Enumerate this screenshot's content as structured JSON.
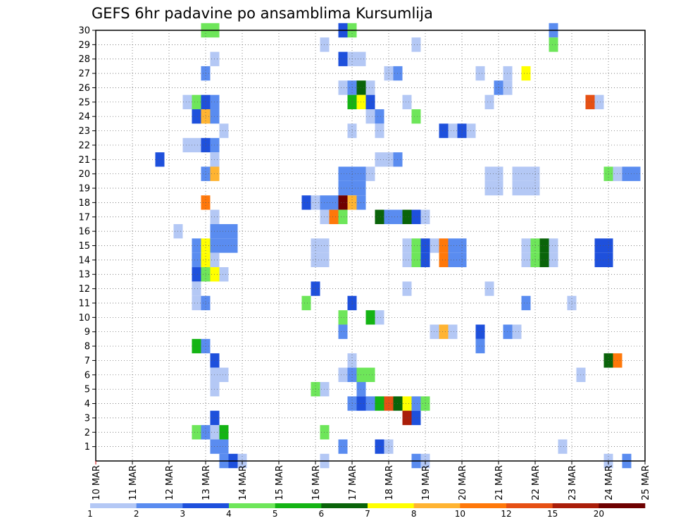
{
  "chart_data": {
    "type": "heatmap",
    "title": "GEFS 6hr padavine po ansamblima Kursumlija",
    "x_ticks": [
      "10 MAR",
      "11 MAR",
      "12 MAR",
      "13 MAR",
      "14 MAR",
      "15 MAR",
      "16 MAR",
      "17 MAR",
      "18 MAR",
      "19 MAR",
      "20 MAR",
      "21 MAR",
      "22 MAR",
      "23 MAR",
      "24 MAR",
      "25 MAR"
    ],
    "y_ticks": [
      "1",
      "2",
      "3",
      "4",
      "5",
      "6",
      "7",
      "8",
      "9",
      "10",
      "11",
      "12",
      "13",
      "14",
      "15",
      "16",
      "17",
      "18",
      "19",
      "20",
      "21",
      "22",
      "23",
      "24",
      "25",
      "26",
      "27",
      "28",
      "29",
      "30"
    ],
    "xlim": [
      "10 MAR 00",
      "25 MAR 00"
    ],
    "ylim": [
      0,
      30
    ],
    "grid": true,
    "legend": {
      "position": "bottom",
      "labels": [
        "1",
        "2",
        "3",
        "4",
        "5",
        "6",
        "7",
        "8",
        "10",
        "12",
        "15",
        "20"
      ],
      "colors": [
        "#b4c8f5",
        "#5a8cf0",
        "#1e50dc",
        "#6ee65a",
        "#14b414",
        "#0a640a",
        "#ffff00",
        "#ffb432",
        "#ff780a",
        "#e65014",
        "#aa1e0a",
        "#6e0000"
      ]
    },
    "cells": [
      {
        "date": "13 MAR 00",
        "member": 30,
        "value": 4
      },
      {
        "date": "13 MAR 06",
        "member": 30,
        "value": 4
      },
      {
        "date": "16 MAR 18",
        "member": 30,
        "value": 3
      },
      {
        "date": "17 MAR 00",
        "member": 30,
        "value": 4
      },
      {
        "date": "22 MAR 12",
        "member": 30,
        "value": 2
      },
      {
        "date": "16 MAR 06",
        "member": 29,
        "value": 1
      },
      {
        "date": "18 MAR 18",
        "member": 29,
        "value": 1
      },
      {
        "date": "22 MAR 12",
        "member": 29,
        "value": 4
      },
      {
        "date": "13 MAR 06",
        "member": 28,
        "value": 1
      },
      {
        "date": "16 MAR 18",
        "member": 28,
        "value": 3
      },
      {
        "date": "17 MAR 00",
        "member": 28,
        "value": 1
      },
      {
        "date": "17 MAR 06",
        "member": 28,
        "value": 1
      },
      {
        "date": "13 MAR 00",
        "member": 27,
        "value": 2
      },
      {
        "date": "18 MAR 00",
        "member": 27,
        "value": 1
      },
      {
        "date": "18 MAR 06",
        "member": 27,
        "value": 2
      },
      {
        "date": "20 MAR 12",
        "member": 27,
        "value": 1
      },
      {
        "date": "21 MAR 06",
        "member": 27,
        "value": 1
      },
      {
        "date": "21 MAR 18",
        "member": 27,
        "value": 7
      },
      {
        "date": "16 MAR 18",
        "member": 26,
        "value": 1
      },
      {
        "date": "17 MAR 00",
        "member": 26,
        "value": 2
      },
      {
        "date": "17 MAR 06",
        "member": 26,
        "value": 6
      },
      {
        "date": "17 MAR 12",
        "member": 26,
        "value": 1
      },
      {
        "date": "21 MAR 00",
        "member": 26,
        "value": 2
      },
      {
        "date": "21 MAR 06",
        "member": 26,
        "value": 1
      },
      {
        "date": "12 MAR 18",
        "member": 25,
        "value": 4
      },
      {
        "date": "13 MAR 00",
        "member": 25,
        "value": 3
      },
      {
        "date": "13 MAR 06",
        "member": 25,
        "value": 2
      },
      {
        "date": "12 MAR 12",
        "member": 25,
        "value": 1
      },
      {
        "date": "17 MAR 00",
        "member": 25,
        "value": 5
      },
      {
        "date": "17 MAR 06",
        "member": 25,
        "value": 7
      },
      {
        "date": "17 MAR 12",
        "member": 25,
        "value": 3
      },
      {
        "date": "18 MAR 12",
        "member": 25,
        "value": 1
      },
      {
        "date": "20 MAR 18",
        "member": 25,
        "value": 1
      },
      {
        "date": "23 MAR 12",
        "member": 25,
        "value": 12
      },
      {
        "date": "23 MAR 18",
        "member": 25,
        "value": 1
      },
      {
        "date": "12 MAR 18",
        "member": 24,
        "value": 3
      },
      {
        "date": "13 MAR 00",
        "member": 24,
        "value": 8
      },
      {
        "date": "13 MAR 06",
        "member": 24,
        "value": 2
      },
      {
        "date": "17 MAR 12",
        "member": 24,
        "value": 1
      },
      {
        "date": "17 MAR 18",
        "member": 24,
        "value": 2
      },
      {
        "date": "18 MAR 18",
        "member": 24,
        "value": 4
      },
      {
        "date": "13 MAR 12",
        "member": 23,
        "value": 1
      },
      {
        "date": "17 MAR 00",
        "member": 23,
        "value": 1
      },
      {
        "date": "17 MAR 18",
        "member": 23,
        "value": 1
      },
      {
        "date": "19 MAR 12",
        "member": 23,
        "value": 3
      },
      {
        "date": "19 MAR 18",
        "member": 23,
        "value": 1
      },
      {
        "date": "20 MAR 00",
        "member": 23,
        "value": 3
      },
      {
        "date": "20 MAR 06",
        "member": 23,
        "value": 1
      },
      {
        "date": "12 MAR 12",
        "member": 22,
        "value": 1
      },
      {
        "date": "12 MAR 18",
        "member": 22,
        "value": 1
      },
      {
        "date": "13 MAR 00",
        "member": 22,
        "value": 3
      },
      {
        "date": "13 MAR 06",
        "member": 22,
        "value": 2
      },
      {
        "date": "11 MAR 18",
        "member": 21,
        "value": 3
      },
      {
        "date": "13 MAR 06",
        "member": 21,
        "value": 1
      },
      {
        "date": "17 MAR 18",
        "member": 21,
        "value": 1
      },
      {
        "date": "18 MAR 00",
        "member": 21,
        "value": 1
      },
      {
        "date": "18 MAR 06",
        "member": 21,
        "value": 2
      },
      {
        "date": "13 MAR 00",
        "member": 20,
        "value": 2
      },
      {
        "date": "13 MAR 06",
        "member": 20,
        "value": 8
      },
      {
        "date": "16 MAR 18",
        "member": 20,
        "value": 2
      },
      {
        "date": "17 MAR 00",
        "member": 20,
        "value": 2
      },
      {
        "date": "17 MAR 06",
        "member": 20,
        "value": 2
      },
      {
        "date": "17 MAR 12",
        "member": 20,
        "value": 1
      },
      {
        "date": "20 MAR 18",
        "member": 20,
        "value": 1
      },
      {
        "date": "21 MAR 00",
        "member": 20,
        "value": 1
      },
      {
        "date": "21 MAR 12",
        "member": 20,
        "value": 1
      },
      {
        "date": "21 MAR 18",
        "member": 20,
        "value": 1
      },
      {
        "date": "22 MAR 00",
        "member": 20,
        "value": 1
      },
      {
        "date": "24 MAR 00",
        "member": 20,
        "value": 4
      },
      {
        "date": "24 MAR 06",
        "member": 20,
        "value": 1
      },
      {
        "date": "24 MAR 12",
        "member": 20,
        "value": 2
      },
      {
        "date": "24 MAR 18",
        "member": 20,
        "value": 2
      },
      {
        "date": "16 MAR 18",
        "member": 19,
        "value": 2
      },
      {
        "date": "17 MAR 00",
        "member": 19,
        "value": 2
      },
      {
        "date": "17 MAR 06",
        "member": 19,
        "value": 2
      },
      {
        "date": "20 MAR 18",
        "member": 19,
        "value": 1
      },
      {
        "date": "21 MAR 00",
        "member": 19,
        "value": 1
      },
      {
        "date": "21 MAR 12",
        "member": 19,
        "value": 1
      },
      {
        "date": "21 MAR 18",
        "member": 19,
        "value": 1
      },
      {
        "date": "22 MAR 00",
        "member": 19,
        "value": 1
      },
      {
        "date": "13 MAR 00",
        "member": 18,
        "value": 10
      },
      {
        "date": "15 MAR 18",
        "member": 18,
        "value": 3
      },
      {
        "date": "16 MAR 00",
        "member": 18,
        "value": 1
      },
      {
        "date": "16 MAR 06",
        "member": 18,
        "value": 2
      },
      {
        "date": "16 MAR 12",
        "member": 18,
        "value": 2
      },
      {
        "date": "16 MAR 18",
        "member": 18,
        "value": 20
      },
      {
        "date": "17 MAR 00",
        "member": 18,
        "value": 8
      },
      {
        "date": "17 MAR 06",
        "member": 18,
        "value": 2
      },
      {
        "date": "13 MAR 06",
        "member": 17,
        "value": 1
      },
      {
        "date": "16 MAR 06",
        "member": 17,
        "value": 1
      },
      {
        "date": "16 MAR 12",
        "member": 17,
        "value": 10
      },
      {
        "date": "16 MAR 18",
        "member": 17,
        "value": 4
      },
      {
        "date": "17 MAR 18",
        "member": 17,
        "value": 6
      },
      {
        "date": "18 MAR 00",
        "member": 17,
        "value": 2
      },
      {
        "date": "18 MAR 06",
        "member": 17,
        "value": 2
      },
      {
        "date": "18 MAR 12",
        "member": 17,
        "value": 6
      },
      {
        "date": "18 MAR 18",
        "member": 17,
        "value": 3
      },
      {
        "date": "19 MAR 00",
        "member": 17,
        "value": 1
      },
      {
        "date": "12 MAR 06",
        "member": 16,
        "value": 1
      },
      {
        "date": "13 MAR 06",
        "member": 16,
        "value": 2
      },
      {
        "date": "13 MAR 12",
        "member": 16,
        "value": 2
      },
      {
        "date": "13 MAR 18",
        "member": 16,
        "value": 2
      },
      {
        "date": "13 MAR 06",
        "member": 15,
        "value": 2
      },
      {
        "date": "13 MAR 12",
        "member": 15,
        "value": 2
      },
      {
        "date": "13 MAR 18",
        "member": 15,
        "value": 2
      },
      {
        "date": "12 MAR 18",
        "member": 15,
        "value": 2
      },
      {
        "date": "13 MAR 00",
        "member": 15,
        "value": 7
      },
      {
        "date": "16 MAR 00",
        "member": 15,
        "value": 1
      },
      {
        "date": "16 MAR 06",
        "member": 15,
        "value": 1
      },
      {
        "date": "18 MAR 12",
        "member": 15,
        "value": 1
      },
      {
        "date": "18 MAR 18",
        "member": 15,
        "value": 4
      },
      {
        "date": "19 MAR 00",
        "member": 15,
        "value": 3
      },
      {
        "date": "19 MAR 06",
        "member": 15,
        "value": 1
      },
      {
        "date": "19 MAR 12",
        "member": 15,
        "value": 10
      },
      {
        "date": "19 MAR 18",
        "member": 15,
        "value": 2
      },
      {
        "date": "20 MAR 00",
        "member": 15,
        "value": 2
      },
      {
        "date": "21 MAR 18",
        "member": 15,
        "value": 1
      },
      {
        "date": "22 MAR 00",
        "member": 15,
        "value": 4
      },
      {
        "date": "22 MAR 06",
        "member": 15,
        "value": 6
      },
      {
        "date": "22 MAR 12",
        "member": 15,
        "value": 1
      },
      {
        "date": "23 MAR 18",
        "member": 15,
        "value": 3
      },
      {
        "date": "24 MAR 00",
        "member": 15,
        "value": 3
      },
      {
        "date": "12 MAR 18",
        "member": 14,
        "value": 2
      },
      {
        "date": "13 MAR 00",
        "member": 14,
        "value": 7
      },
      {
        "date": "13 MAR 06",
        "member": 14,
        "value": 1
      },
      {
        "date": "16 MAR 00",
        "member": 14,
        "value": 1
      },
      {
        "date": "16 MAR 06",
        "member": 14,
        "value": 1
      },
      {
        "date": "18 MAR 12",
        "member": 14,
        "value": 1
      },
      {
        "date": "18 MAR 18",
        "member": 14,
        "value": 4
      },
      {
        "date": "19 MAR 00",
        "member": 14,
        "value": 3
      },
      {
        "date": "19 MAR 12",
        "member": 14,
        "value": 10
      },
      {
        "date": "19 MAR 18",
        "member": 14,
        "value": 2
      },
      {
        "date": "20 MAR 00",
        "member": 14,
        "value": 2
      },
      {
        "date": "21 MAR 18",
        "member": 14,
        "value": 1
      },
      {
        "date": "22 MAR 00",
        "member": 14,
        "value": 4
      },
      {
        "date": "22 MAR 06",
        "member": 14,
        "value": 6
      },
      {
        "date": "22 MAR 12",
        "member": 14,
        "value": 1
      },
      {
        "date": "23 MAR 18",
        "member": 14,
        "value": 3
      },
      {
        "date": "24 MAR 00",
        "member": 14,
        "value": 3
      },
      {
        "date": "12 MAR 18",
        "member": 13,
        "value": 3
      },
      {
        "date": "13 MAR 00",
        "member": 13,
        "value": 4
      },
      {
        "date": "13 MAR 06",
        "member": 13,
        "value": 7
      },
      {
        "date": "13 MAR 12",
        "member": 13,
        "value": 1
      },
      {
        "date": "12 MAR 18",
        "member": 12,
        "value": 1
      },
      {
        "date": "16 MAR 00",
        "member": 12,
        "value": 3
      },
      {
        "date": "18 MAR 12",
        "member": 12,
        "value": 1
      },
      {
        "date": "20 MAR 18",
        "member": 12,
        "value": 1
      },
      {
        "date": "12 MAR 18",
        "member": 11,
        "value": 1
      },
      {
        "date": "13 MAR 00",
        "member": 11,
        "value": 2
      },
      {
        "date": "15 MAR 18",
        "member": 11,
        "value": 4
      },
      {
        "date": "17 MAR 00",
        "member": 11,
        "value": 3
      },
      {
        "date": "21 MAR 18",
        "member": 11,
        "value": 2
      },
      {
        "date": "23 MAR 00",
        "member": 11,
        "value": 1
      },
      {
        "date": "16 MAR 18",
        "member": 10,
        "value": 4
      },
      {
        "date": "17 MAR 12",
        "member": 10,
        "value": 5
      },
      {
        "date": "17 MAR 18",
        "member": 10,
        "value": 1
      },
      {
        "date": "16 MAR 18",
        "member": 9,
        "value": 2
      },
      {
        "date": "19 MAR 06",
        "member": 9,
        "value": 1
      },
      {
        "date": "19 MAR 12",
        "member": 9,
        "value": 8
      },
      {
        "date": "19 MAR 18",
        "member": 9,
        "value": 1
      },
      {
        "date": "20 MAR 12",
        "member": 9,
        "value": 3
      },
      {
        "date": "21 MAR 06",
        "member": 9,
        "value": 2
      },
      {
        "date": "21 MAR 12",
        "member": 9,
        "value": 1
      },
      {
        "date": "12 MAR 18",
        "member": 8,
        "value": 5
      },
      {
        "date": "13 MAR 00",
        "member": 8,
        "value": 2
      },
      {
        "date": "20 MAR 12",
        "member": 8,
        "value": 2
      },
      {
        "date": "13 MAR 06",
        "member": 7,
        "value": 3
      },
      {
        "date": "17 MAR 00",
        "member": 7,
        "value": 1
      },
      {
        "date": "24 MAR 00",
        "member": 7,
        "value": 6
      },
      {
        "date": "24 MAR 06",
        "member": 7,
        "value": 10
      },
      {
        "date": "13 MAR 06",
        "member": 6,
        "value": 1
      },
      {
        "date": "13 MAR 12",
        "member": 6,
        "value": 1
      },
      {
        "date": "16 MAR 18",
        "member": 6,
        "value": 1
      },
      {
        "date": "17 MAR 00",
        "member": 6,
        "value": 2
      },
      {
        "date": "17 MAR 06",
        "member": 6,
        "value": 4
      },
      {
        "date": "17 MAR 12",
        "member": 6,
        "value": 4
      },
      {
        "date": "23 MAR 06",
        "member": 6,
        "value": 1
      },
      {
        "date": "13 MAR 06",
        "member": 5,
        "value": 1
      },
      {
        "date": "16 MAR 00",
        "member": 5,
        "value": 4
      },
      {
        "date": "16 MAR 06",
        "member": 5,
        "value": 1
      },
      {
        "date": "17 MAR 06",
        "member": 5,
        "value": 2
      },
      {
        "date": "17 MAR 00",
        "member": 4,
        "value": 2
      },
      {
        "date": "17 MAR 06",
        "member": 4,
        "value": 3
      },
      {
        "date": "17 MAR 12",
        "member": 4,
        "value": 2
      },
      {
        "date": "17 MAR 18",
        "member": 4,
        "value": 5
      },
      {
        "date": "18 MAR 00",
        "member": 4,
        "value": 12
      },
      {
        "date": "18 MAR 06",
        "member": 4,
        "value": 6
      },
      {
        "date": "18 MAR 12",
        "member": 4,
        "value": 7
      },
      {
        "date": "18 MAR 18",
        "member": 4,
        "value": 2
      },
      {
        "date": "19 MAR 00",
        "member": 4,
        "value": 4
      },
      {
        "date": "13 MAR 06",
        "member": 3,
        "value": 3
      },
      {
        "date": "18 MAR 12",
        "member": 3,
        "value": 15
      },
      {
        "date": "18 MAR 18",
        "member": 3,
        "value": 3
      },
      {
        "date": "12 MAR 18",
        "member": 2,
        "value": 4
      },
      {
        "date": "13 MAR 00",
        "member": 2,
        "value": 2
      },
      {
        "date": "13 MAR 06",
        "member": 2,
        "value": 1
      },
      {
        "date": "13 MAR 12",
        "member": 2,
        "value": 5
      },
      {
        "date": "16 MAR 06",
        "member": 2,
        "value": 4
      },
      {
        "date": "13 MAR 06",
        "member": 1,
        "value": 2
      },
      {
        "date": "13 MAR 12",
        "member": 1,
        "value": 2
      },
      {
        "date": "16 MAR 18",
        "member": 1,
        "value": 2
      },
      {
        "date": "17 MAR 18",
        "member": 1,
        "value": 3
      },
      {
        "date": "18 MAR 00",
        "member": 1,
        "value": 1
      },
      {
        "date": "22 MAR 18",
        "member": 1,
        "value": 1
      },
      {
        "date": "13 MAR 12",
        "member": 0,
        "value": 2
      },
      {
        "date": "13 MAR 18",
        "member": 0,
        "value": 3
      },
      {
        "date": "14 MAR 00",
        "member": 0,
        "value": 1
      },
      {
        "date": "16 MAR 06",
        "member": 0,
        "value": 1
      },
      {
        "date": "18 MAR 18",
        "member": 0,
        "value": 2
      },
      {
        "date": "19 MAR 00",
        "member": 0,
        "value": 1
      },
      {
        "date": "24 MAR 00",
        "member": 0,
        "value": 1
      },
      {
        "date": "24 MAR 12",
        "member": 0,
        "value": 2
      }
    ]
  }
}
